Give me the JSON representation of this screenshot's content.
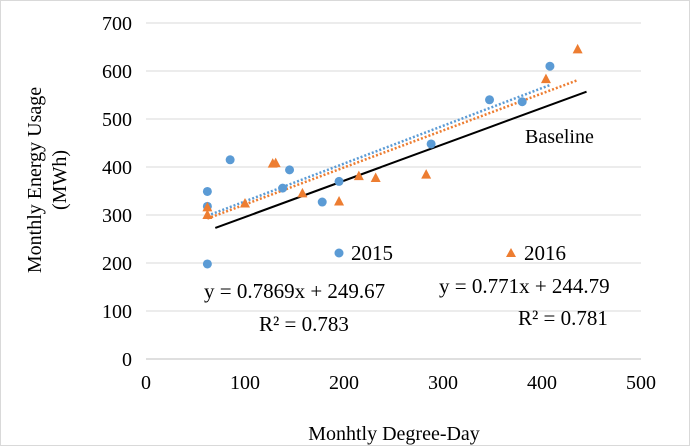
{
  "chart_data": {
    "type": "scatter",
    "xlabel": "Monhtly Degree-Day",
    "ylabel_line1": "Monthly Energy Usage",
    "ylabel_line2": "(MWh)",
    "xlim": [
      0,
      500
    ],
    "ylim": [
      0,
      700
    ],
    "x_ticks": [
      0,
      100,
      200,
      300,
      400,
      500
    ],
    "y_ticks": [
      0,
      100,
      200,
      300,
      400,
      500,
      600,
      700
    ],
    "grid": "horizontal",
    "series": [
      {
        "name": "2015",
        "marker": "circle",
        "color": "#5b9bd5",
        "points": [
          [
            62,
            198
          ],
          [
            62,
            318
          ],
          [
            62,
            349
          ],
          [
            85,
            415
          ],
          [
            138,
            356
          ],
          [
            145,
            394
          ],
          [
            178,
            327
          ],
          [
            195,
            370
          ],
          [
            288,
            448
          ],
          [
            347,
            540
          ],
          [
            380,
            536
          ],
          [
            408,
            610
          ]
        ],
        "trendline": {
          "x": [
            62,
            408
          ]
        },
        "equation": "y = 0.7869x + 249.67",
        "r2": "R² = 0.783"
      },
      {
        "name": "2016",
        "marker": "triangle",
        "color": "#ed7d31",
        "points": [
          [
            62,
            300
          ],
          [
            62,
            316
          ],
          [
            100,
            324
          ],
          [
            128,
            407
          ],
          [
            131,
            408
          ],
          [
            158,
            345
          ],
          [
            195,
            328
          ],
          [
            215,
            381
          ],
          [
            232,
            377
          ],
          [
            283,
            384
          ],
          [
            404,
            583
          ],
          [
            436,
            645
          ]
        ],
        "trendline": {
          "x": [
            62,
            436
          ]
        },
        "equation": "y = 0.771x + 244.79",
        "r2": "R² = 0.781"
      }
    ],
    "baseline": {
      "label": "Baseline",
      "color": "#000000",
      "points": [
        [
          70,
          273
        ],
        [
          445,
          557
        ]
      ]
    }
  }
}
